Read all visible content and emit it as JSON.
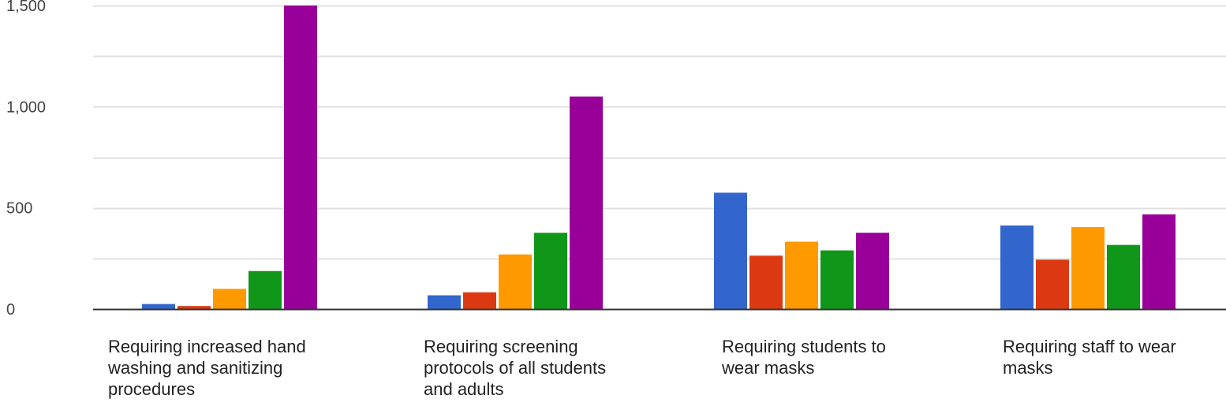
{
  "chart_data": {
    "type": "bar",
    "categories": [
      "Requiring increased hand washing and sanitizing procedures",
      "Requiring screening protocols of all students and adults",
      "Requiring students to wear masks",
      "Requiring staff to wear masks"
    ],
    "series": [
      {
        "color": "#3366cc",
        "values": [
          25,
          68,
          575,
          413
        ]
      },
      {
        "color": "#dc3912",
        "values": [
          15,
          83,
          264,
          244
        ]
      },
      {
        "color": "#ff9900",
        "values": [
          100,
          270,
          333,
          405
        ]
      },
      {
        "color": "#109618",
        "values": [
          188,
          377,
          290,
          317
        ]
      },
      {
        "color": "#990099",
        "values": [
          1500,
          1050,
          377,
          468
        ]
      }
    ],
    "ylim": [
      0,
      1500
    ],
    "yticks": [
      0,
      500,
      1000,
      1500
    ],
    "ytick_labels": [
      "0",
      "500",
      "1,000",
      "1,500"
    ],
    "grid": true,
    "legend": "none"
  }
}
